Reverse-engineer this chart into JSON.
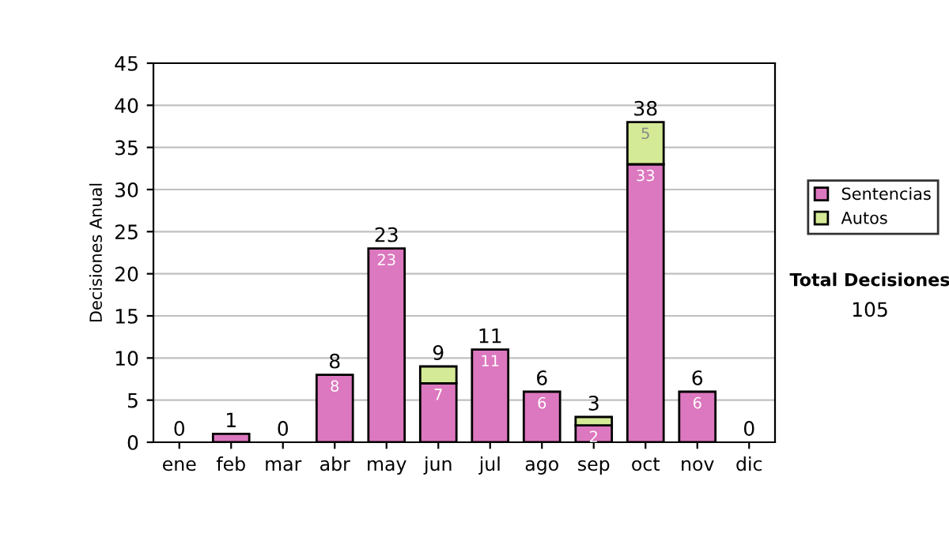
{
  "chart_data": {
    "type": "bar",
    "ylabel": "Decisiones Anual",
    "categories": [
      "ene",
      "feb",
      "mar",
      "abr",
      "may",
      "jun",
      "jul",
      "ago",
      "sep",
      "oct",
      "nov",
      "dic"
    ],
    "stacked": true,
    "series": [
      {
        "name": "Sentencias",
        "color": "#dc78bf",
        "values": [
          0,
          1,
          0,
          8,
          23,
          7,
          11,
          6,
          2,
          33,
          6,
          0
        ],
        "value_labels": [
          null,
          null,
          null,
          "8",
          "23",
          "7",
          "11",
          "6",
          "2",
          "33",
          "6",
          null
        ]
      },
      {
        "name": "Autos",
        "color": "#d4ea96",
        "values": [
          0,
          0,
          0,
          0,
          0,
          2,
          0,
          0,
          1,
          5,
          0,
          0
        ],
        "value_labels": [
          null,
          null,
          null,
          null,
          null,
          null,
          null,
          null,
          null,
          "5",
          null,
          null
        ]
      }
    ],
    "totals": [
      "0",
      "1",
      "0",
      "8",
      "23",
      "9",
      "11",
      "6",
      "3",
      "38",
      "6",
      "0"
    ],
    "ylim": [
      0,
      45
    ],
    "yticks": [
      0,
      5,
      10,
      15,
      20,
      25,
      30,
      35,
      40,
      45
    ],
    "grid": "y",
    "legend": "right",
    "annotations": [
      "Total Decisiones",
      "105"
    ]
  }
}
